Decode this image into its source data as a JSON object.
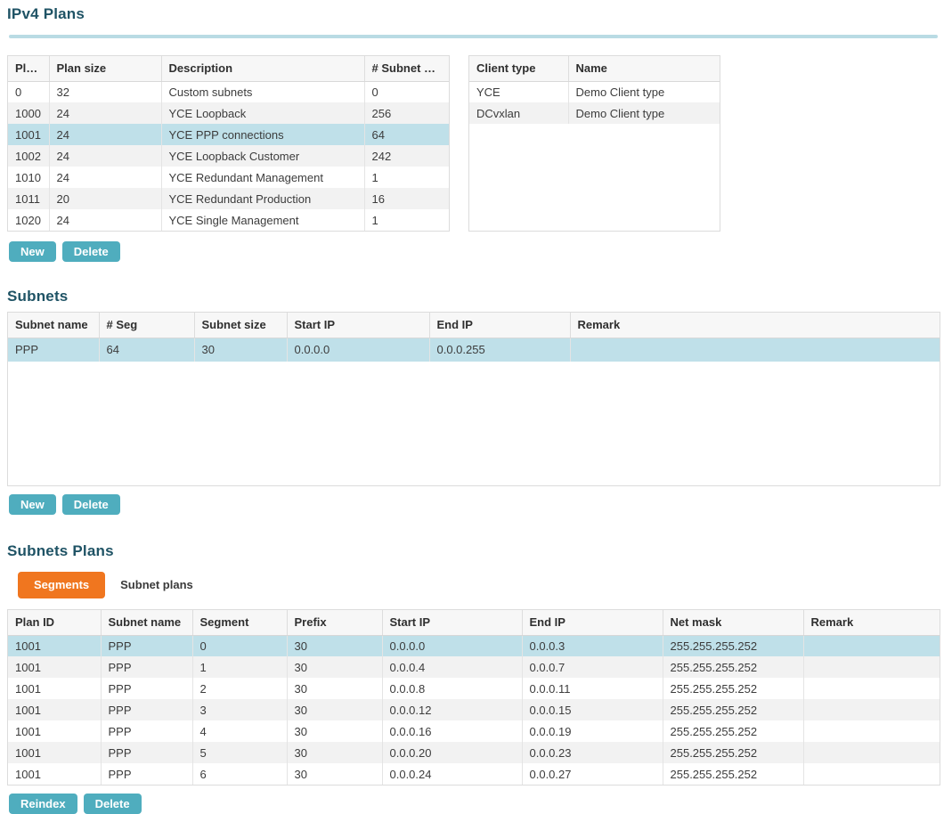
{
  "ipv4_plans": {
    "title": "IPv4 Plans",
    "plans_table": {
      "columns": [
        "Plan …",
        "Plan size",
        "Description",
        "# Subnet Ra…"
      ],
      "rows": [
        [
          "0",
          "32",
          "Custom subnets",
          "0"
        ],
        [
          "1000",
          "24",
          "YCE Loopback",
          "256"
        ],
        [
          "1001",
          "24",
          "YCE PPP connections",
          "64"
        ],
        [
          "1002",
          "24",
          "YCE Loopback Customer",
          "242"
        ],
        [
          "1010",
          "24",
          "YCE Redundant Management",
          "1"
        ],
        [
          "1011",
          "20",
          "YCE Redundant Production",
          "16"
        ],
        [
          "1020",
          "24",
          "YCE Single Management",
          "1"
        ]
      ],
      "selected_row_index": 2
    },
    "client_types_table": {
      "columns": [
        "Client type",
        "Name"
      ],
      "rows": [
        [
          "YCE",
          "Demo Client type"
        ],
        [
          "DCvxlan",
          "Demo Client type"
        ]
      ],
      "selected_row_index": -1
    },
    "new_button": "New",
    "delete_button": "Delete"
  },
  "subnets": {
    "title": "Subnets",
    "table": {
      "columns": [
        "Subnet name",
        "# Seg",
        "Subnet size",
        "Start IP",
        "End IP",
        "Remark"
      ],
      "rows": [
        [
          "PPP",
          "64",
          "30",
          "0.0.0.0",
          "0.0.0.255",
          ""
        ]
      ],
      "selected_row_index": 0
    },
    "new_button": "New",
    "delete_button": "Delete"
  },
  "subnets_plans": {
    "title": "Subnets Plans",
    "tabs": [
      {
        "label": "Segments",
        "active": true
      },
      {
        "label": "Subnet plans",
        "active": false
      }
    ],
    "segments_table": {
      "columns": [
        "Plan ID",
        "Subnet name",
        "Segment",
        "Prefix",
        "Start IP",
        "End IP",
        "Net mask",
        "Remark"
      ],
      "rows": [
        [
          "1001",
          "PPP",
          "0",
          "30",
          "0.0.0.0",
          "0.0.0.3",
          "255.255.255.252",
          ""
        ],
        [
          "1001",
          "PPP",
          "1",
          "30",
          "0.0.0.4",
          "0.0.0.7",
          "255.255.255.252",
          ""
        ],
        [
          "1001",
          "PPP",
          "2",
          "30",
          "0.0.0.8",
          "0.0.0.11",
          "255.255.255.252",
          ""
        ],
        [
          "1001",
          "PPP",
          "3",
          "30",
          "0.0.0.12",
          "0.0.0.15",
          "255.255.255.252",
          ""
        ],
        [
          "1001",
          "PPP",
          "4",
          "30",
          "0.0.0.16",
          "0.0.0.19",
          "255.255.255.252",
          ""
        ],
        [
          "1001",
          "PPP",
          "5",
          "30",
          "0.0.0.20",
          "0.0.0.23",
          "255.255.255.252",
          ""
        ],
        [
          "1001",
          "PPP",
          "6",
          "30",
          "0.0.0.24",
          "0.0.0.27",
          "255.255.255.252",
          ""
        ]
      ],
      "selected_row_index": 0
    },
    "reindex_button": "Reindex",
    "delete_button": "Delete"
  },
  "colors": {
    "heading": "#1f5365",
    "divider": "#b9dbe4",
    "selected_row": "#bfe0e9",
    "alt_row": "#f2f2f2",
    "button_teal": "#4fadbe",
    "tab_active_orange": "#f0761f"
  }
}
